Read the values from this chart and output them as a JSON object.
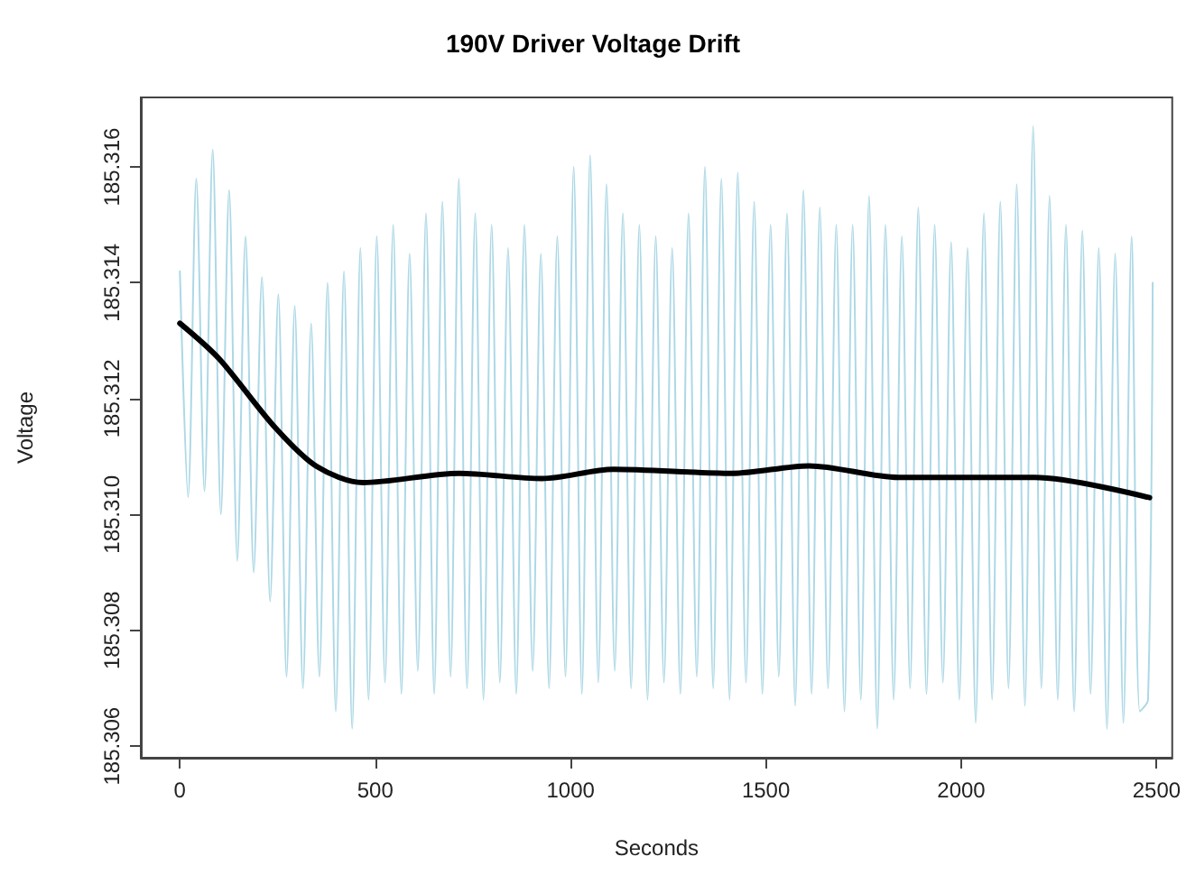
{
  "chart_data": {
    "type": "line",
    "title": "190V Driver Voltage Drift",
    "xlabel": "Seconds",
    "ylabel": "Voltage",
    "xlim": [
      -100,
      2540
    ],
    "xticks": [
      0,
      500,
      1000,
      1500,
      2000,
      2500
    ],
    "ylim": [
      185.3058,
      185.3172
    ],
    "yticks": [
      185.306,
      185.308,
      {
        "value": 185.31,
        "label": "185.310"
      },
      185.312,
      185.314,
      185.316
    ],
    "grid": false,
    "marker": "none",
    "line_style": "solid",
    "series": [
      {
        "color": "#add8e6",
        "x": [
          0,
          21,
          42,
          63,
          84,
          105,
          126,
          147,
          168,
          189,
          210,
          231,
          252,
          273,
          294,
          315,
          336,
          357,
          378,
          399,
          420,
          441,
          462,
          483,
          504,
          525,
          546,
          567,
          588,
          609,
          630,
          651,
          672,
          693,
          714,
          735,
          756,
          777,
          798,
          819,
          840,
          861,
          882,
          903,
          924,
          945,
          966,
          987,
          1008,
          1029,
          1050,
          1071,
          1092,
          1113,
          1134,
          1155,
          1176,
          1197,
          1218,
          1239,
          1260,
          1281,
          1302,
          1323,
          1344,
          1365,
          1386,
          1407,
          1428,
          1449,
          1470,
          1491,
          1512,
          1533,
          1554,
          1575,
          1596,
          1617,
          1638,
          1659,
          1680,
          1701,
          1722,
          1743,
          1764,
          1785,
          1806,
          1827,
          1848,
          1869,
          1890,
          1911,
          1932,
          1953,
          1974,
          1995,
          2016,
          2037,
          2058,
          2079,
          2100,
          2121,
          2142,
          2163,
          2184,
          2205,
          2226,
          2247,
          2268,
          2289,
          2310,
          2331,
          2352,
          2373,
          2394,
          2415,
          2436,
          2457,
          2478,
          2490
        ],
        "values": [
          185.3142,
          185.3103,
          185.3158,
          185.3104,
          185.3163,
          185.31,
          185.3156,
          185.3092,
          185.3148,
          185.309,
          185.3141,
          185.3085,
          185.3138,
          185.3072,
          185.3136,
          185.307,
          185.3133,
          185.3072,
          185.314,
          185.3066,
          185.3142,
          185.3063,
          185.3146,
          185.3068,
          185.3148,
          185.3071,
          185.315,
          185.3069,
          185.3145,
          185.3073,
          185.3152,
          185.3069,
          185.3154,
          185.3072,
          185.3158,
          185.307,
          185.3152,
          185.3068,
          185.315,
          185.3071,
          185.3146,
          185.3069,
          185.315,
          185.3073,
          185.3145,
          185.307,
          185.3148,
          185.3072,
          185.316,
          185.3069,
          185.3162,
          185.3071,
          185.3157,
          185.3073,
          185.3152,
          185.307,
          185.315,
          185.3068,
          185.3148,
          185.3071,
          185.3146,
          185.3069,
          185.3152,
          185.3072,
          185.316,
          185.307,
          185.3158,
          185.3068,
          185.3159,
          185.3071,
          185.3154,
          185.3069,
          185.315,
          185.3072,
          185.3152,
          185.3067,
          185.3156,
          185.3069,
          185.3153,
          185.307,
          185.315,
          185.3066,
          185.315,
          185.3068,
          185.3155,
          185.3063,
          185.315,
          185.3068,
          185.3148,
          185.307,
          185.3153,
          185.3069,
          185.315,
          185.3071,
          185.3147,
          185.3068,
          185.3146,
          185.3064,
          185.3152,
          185.3068,
          185.3154,
          185.307,
          185.3157,
          185.3067,
          185.3167,
          185.307,
          185.3155,
          185.3068,
          185.315,
          185.3066,
          185.3149,
          185.3069,
          185.3146,
          185.3063,
          185.3145,
          185.3064,
          185.3148,
          185.3066,
          185.3068,
          185.314
        ]
      },
      {
        "color": "#000000",
        "x": [
          0,
          100,
          244,
          350,
          469,
          715,
          927,
          1110,
          1414,
          1611,
          1839,
          2188,
          2482
        ],
        "values": [
          185.3133,
          185.31269,
          185.3115,
          185.31083,
          185.31055,
          185.31071,
          185.31062,
          185.31078,
          185.31071,
          185.31084,
          185.31064,
          185.31064,
          185.31029
        ]
      }
    ]
  }
}
